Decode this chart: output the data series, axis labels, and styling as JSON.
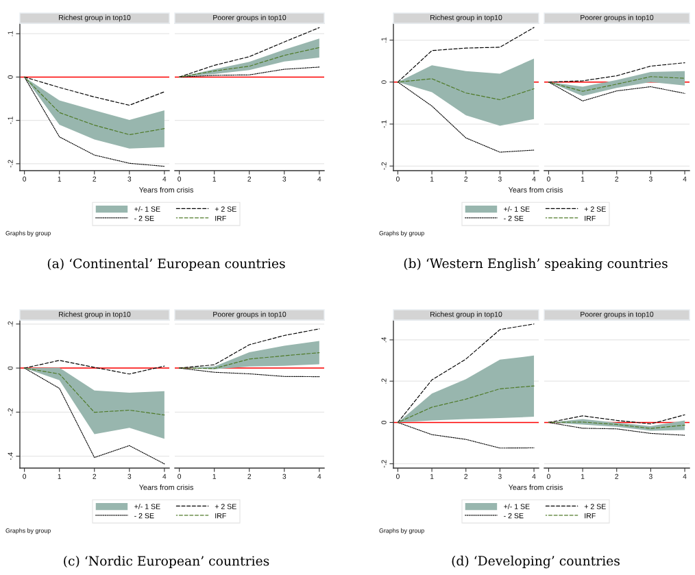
{
  "chart_data": [
    {
      "type": "line",
      "title": "Richest group in top10",
      "xlabel": "Years from crisis",
      "x": [
        0,
        1,
        2,
        3,
        4
      ],
      "xlim": [
        -0.13,
        4.14
      ],
      "xticks": [
        0,
        1,
        2,
        3,
        4
      ],
      "ylim": [
        -0.216,
        0.124
      ],
      "yticks": [
        {
          "value": -0.2,
          "label": "-.2"
        },
        {
          "value": -0.1,
          "label": "-.1"
        },
        0,
        {
          "value": 0.1,
          "label": ".1"
        }
      ],
      "grid": "y",
      "legend": "bottom",
      "ref_lines": [
        {
          "axis": "y",
          "value": 0,
          "color": "#ff0000"
        }
      ],
      "series": [
        {
          "name": "+/- 1 SE",
          "type": "area",
          "color": "#98b6ae",
          "values": [
            null,
            null,
            null,
            null,
            null
          ]
        },
        {
          "name": "+ 2 SE",
          "color": "#000000",
          "line_style": "dashed",
          "values": [
            0,
            -0.024,
            -0.046,
            -0.065,
            -0.034
          ]
        },
        {
          "name": "- 2 SE",
          "color": "#000000",
          "line_style": "dotted",
          "values": [
            0,
            -0.138,
            -0.18,
            -0.199,
            -0.206
          ]
        },
        {
          "name": "IRF",
          "color": "#4f7a28",
          "line_style": "dashed",
          "values": [
            0,
            -0.082,
            -0.111,
            -0.133,
            -0.119
          ],
          "lower": [
            0,
            -0.11,
            -0.144,
            -0.165,
            -0.162
          ],
          "upper": [
            0,
            -0.054,
            -0.077,
            -0.099,
            -0.077
          ]
        }
      ],
      "annotations": [
        "Graphs by group",
        "(a) ‘Continental’ European countries"
      ]
    },
    {
      "type": "line",
      "title": "Poorer groups in top10",
      "x": [
        0,
        1,
        2,
        3,
        4
      ],
      "xlim": [
        -0.13,
        4.14
      ],
      "xticks": [
        0,
        1,
        2,
        3,
        4
      ],
      "ylim": [
        -0.216,
        0.124
      ],
      "yticks": [
        -0.2,
        -0.1,
        0,
        0.1
      ],
      "grid": "y",
      "tick_labels": "x",
      "ref_lines": [
        {
          "axis": "y",
          "value": 0,
          "color": "#ff0000"
        }
      ],
      "series": [
        {
          "type": "area",
          "color": "#98b6ae",
          "values": [
            null,
            null,
            null,
            null,
            null
          ]
        },
        {
          "color": "#000000",
          "line_style": "dashed",
          "values": [
            0,
            0.027,
            0.047,
            0.081,
            0.114
          ]
        },
        {
          "color": "#000000",
          "line_style": "dotted",
          "values": [
            0,
            0.004,
            0.005,
            0.018,
            0.023
          ]
        },
        {
          "color": "#4f7a28",
          "line_style": "dashed",
          "values": [
            0,
            0.014,
            0.025,
            0.05,
            0.068
          ],
          "lower": [
            0,
            0.007,
            0.016,
            0.036,
            0.045
          ],
          "upper": [
            0,
            0.018,
            0.035,
            0.063,
            0.089
          ]
        }
      ]
    },
    {
      "type": "line",
      "title": "Richest group in top10",
      "xlabel": "Years from crisis",
      "x": [
        0,
        1,
        2,
        3,
        4
      ],
      "xlim": [
        -0.13,
        4.14
      ],
      "xticks": [
        0,
        1,
        2,
        3,
        4
      ],
      "ylim": [
        -0.211,
        0.14
      ],
      "yticks": [
        {
          "value": -0.2,
          "label": "-.2"
        },
        {
          "value": -0.1,
          "label": "-.1"
        },
        0,
        {
          "value": 0.1,
          "label": ".1"
        }
      ],
      "grid": "y",
      "legend": "bottom",
      "ref_lines": [
        {
          "axis": "y",
          "value": 0,
          "color": "#ff0000"
        }
      ],
      "series": [
        {
          "name": "+/- 1 SE",
          "type": "area",
          "color": "#98b6ae",
          "values": [
            null,
            null,
            null,
            null,
            null
          ]
        },
        {
          "name": "+ 2 SE",
          "color": "#000000",
          "line_style": "dashed",
          "values": [
            0,
            0.075,
            0.081,
            0.083,
            0.13
          ]
        },
        {
          "name": "- 2 SE",
          "color": "#000000",
          "line_style": "dotted",
          "values": [
            0,
            -0.057,
            -0.133,
            -0.167,
            -0.162
          ]
        },
        {
          "name": "IRF",
          "color": "#4f7a28",
          "line_style": "dashed",
          "values": [
            0,
            0.008,
            -0.026,
            -0.042,
            -0.016
          ],
          "lower": [
            0,
            -0.024,
            -0.079,
            -0.104,
            -0.088
          ],
          "upper": [
            0,
            0.04,
            0.026,
            0.02,
            0.056
          ]
        }
      ],
      "annotations": [
        "Graphs by group",
        "(b) ‘Western English’ speaking countries"
      ]
    },
    {
      "type": "line",
      "title": "Poorer groups in top10",
      "x": [
        0,
        1,
        2,
        3,
        4
      ],
      "xlim": [
        -0.13,
        4.14
      ],
      "xticks": [
        0,
        1,
        2,
        3,
        4
      ],
      "ylim": [
        -0.211,
        0.14
      ],
      "yticks": [
        -0.2,
        -0.1,
        0,
        0.1
      ],
      "grid": "y",
      "tick_labels": "x",
      "ref_lines": [
        {
          "axis": "y",
          "value": 0,
          "color": "#ff0000"
        }
      ],
      "series": [
        {
          "type": "area",
          "color": "#98b6ae",
          "values": [
            null,
            null,
            null,
            null,
            null
          ]
        },
        {
          "color": "#000000",
          "line_style": "dashed",
          "values": [
            0,
            0.003,
            0.015,
            0.038,
            0.046
          ]
        },
        {
          "color": "#000000",
          "line_style": "dotted",
          "values": [
            0,
            -0.045,
            -0.021,
            -0.011,
            -0.027
          ]
        },
        {
          "color": "#4f7a28",
          "line_style": "dashed",
          "values": [
            0,
            -0.022,
            -0.005,
            0.013,
            0.009
          ],
          "lower": [
            0,
            -0.033,
            -0.014,
            0.0,
            -0.008
          ],
          "upper": [
            0,
            -0.011,
            0.005,
            0.024,
            0.026
          ]
        }
      ]
    },
    {
      "type": "line",
      "title": "Richest group in top10",
      "xlabel": "Years from crisis",
      "x": [
        0,
        1,
        2,
        3,
        4
      ],
      "xlim": [
        -0.13,
        4.14
      ],
      "xticks": [
        0,
        1,
        2,
        3,
        4
      ],
      "ylim": [
        -0.454,
        0.218
      ],
      "yticks": [
        {
          "value": -0.4,
          "label": "-.4"
        },
        {
          "value": -0.2,
          "label": "-.2"
        },
        0,
        {
          "value": 0.2,
          "label": ".2"
        }
      ],
      "grid": "y",
      "legend": "bottom",
      "ref_lines": [
        {
          "axis": "y",
          "value": 0,
          "color": "#ff0000"
        }
      ],
      "series": [
        {
          "name": "+/- 1 SE",
          "type": "area",
          "color": "#98b6ae",
          "values": [
            null,
            null,
            null,
            null,
            null
          ]
        },
        {
          "name": "+ 2 SE",
          "color": "#000000",
          "line_style": "dashed",
          "values": [
            0,
            0.035,
            0.003,
            -0.027,
            0.009
          ]
        },
        {
          "name": "- 2 SE",
          "color": "#000000",
          "line_style": "dotted",
          "values": [
            0,
            -0.092,
            -0.406,
            -0.352,
            -0.435
          ]
        },
        {
          "name": "IRF",
          "color": "#4f7a28",
          "line_style": "dashed",
          "values": [
            0,
            -0.027,
            -0.201,
            -0.191,
            -0.213
          ],
          "lower": [
            0,
            -0.055,
            -0.3,
            -0.271,
            -0.321
          ],
          "upper": [
            0,
            0.002,
            -0.102,
            -0.112,
            -0.105
          ]
        }
      ],
      "annotations": [
        "Graphs by group",
        "(c) ‘Nordic European’ countries"
      ]
    },
    {
      "type": "line",
      "title": "Poorer groups in top10",
      "x": [
        0,
        1,
        2,
        3,
        4
      ],
      "xlim": [
        -0.13,
        4.14
      ],
      "xticks": [
        0,
        1,
        2,
        3,
        4
      ],
      "ylim": [
        -0.454,
        0.218
      ],
      "yticks": [
        -0.4,
        -0.2,
        0,
        0.2
      ],
      "grid": "y",
      "tick_labels": "x",
      "ref_lines": [
        {
          "axis": "y",
          "value": 0,
          "color": "#ff0000"
        }
      ],
      "series": [
        {
          "type": "area",
          "color": "#98b6ae",
          "values": [
            null,
            null,
            null,
            null,
            null
          ]
        },
        {
          "color": "#000000",
          "line_style": "dashed",
          "values": [
            0,
            0.015,
            0.106,
            0.148,
            0.178
          ]
        },
        {
          "color": "#000000",
          "line_style": "dotted",
          "values": [
            0,
            -0.019,
            -0.026,
            -0.038,
            -0.039
          ]
        },
        {
          "color": "#4f7a28",
          "line_style": "dashed",
          "values": [
            0,
            -0.002,
            0.041,
            0.056,
            0.07
          ],
          "lower": [
            0,
            -0.005,
            0.007,
            0.01,
            0.017
          ],
          "upper": [
            0,
            0.007,
            0.072,
            0.101,
            0.123
          ]
        }
      ]
    },
    {
      "type": "line",
      "title": "Richest group in top10",
      "xlabel": "Years from crisis",
      "x": [
        0,
        1,
        2,
        3,
        4
      ],
      "xlim": [
        -0.13,
        4.14
      ],
      "xticks": [
        0,
        1,
        2,
        3,
        4
      ],
      "ylim": [
        -0.221,
        0.496
      ],
      "yticks": [
        {
          "value": -0.2,
          "label": "-.2"
        },
        0,
        {
          "value": 0.2,
          "label": ".2"
        },
        {
          "value": 0.4,
          "label": ".4"
        }
      ],
      "grid": "y",
      "legend": "bottom",
      "ref_lines": [
        {
          "axis": "y",
          "value": 0,
          "color": "#ff0000"
        }
      ],
      "series": [
        {
          "name": "+/- 1 SE",
          "type": "area",
          "color": "#98b6ae",
          "values": [
            null,
            null,
            null,
            null,
            null
          ]
        },
        {
          "name": "+ 2 SE",
          "color": "#000000",
          "line_style": "dashed",
          "values": [
            0,
            0.206,
            0.307,
            0.45,
            0.477
          ]
        },
        {
          "name": "- 2 SE",
          "color": "#000000",
          "line_style": "dotted",
          "values": [
            0,
            -0.059,
            -0.082,
            -0.124,
            -0.123
          ]
        },
        {
          "name": "IRF",
          "color": "#4f7a28",
          "line_style": "dashed",
          "values": [
            0,
            0.074,
            0.113,
            0.163,
            0.177
          ],
          "lower": [
            0,
            0.01,
            0.016,
            0.021,
            0.028
          ],
          "upper": [
            0,
            0.14,
            0.21,
            0.304,
            0.324
          ]
        }
      ],
      "annotations": [
        "Graphs by group",
        "(d) ‘Developing’ countries"
      ]
    },
    {
      "type": "line",
      "title": "Poorer groups in top10",
      "x": [
        0,
        1,
        2,
        3,
        4
      ],
      "xlim": [
        -0.13,
        4.14
      ],
      "xticks": [
        0,
        1,
        2,
        3,
        4
      ],
      "ylim": [
        -0.221,
        0.496
      ],
      "yticks": [
        -0.2,
        0,
        0.2,
        0.4
      ],
      "grid": "y",
      "tick_labels": "x",
      "ref_lines": [
        {
          "axis": "y",
          "value": 0,
          "color": "#ff0000"
        }
      ],
      "series": [
        {
          "type": "area",
          "color": "#98b6ae",
          "values": [
            null,
            null,
            null,
            null,
            null
          ]
        },
        {
          "color": "#000000",
          "line_style": "dashed",
          "values": [
            0,
            0.032,
            0.01,
            -0.007,
            0.037
          ]
        },
        {
          "color": "#000000",
          "line_style": "dotted",
          "values": [
            0,
            -0.028,
            -0.031,
            -0.053,
            -0.062
          ]
        },
        {
          "color": "#4f7a28",
          "line_style": "dashed",
          "values": [
            0,
            0.002,
            -0.01,
            -0.029,
            -0.013
          ],
          "lower": [
            0,
            -0.01,
            -0.021,
            -0.04,
            -0.037
          ],
          "upper": [
            0,
            0.016,
            -0.001,
            -0.018,
            0.01
          ]
        }
      ]
    }
  ]
}
